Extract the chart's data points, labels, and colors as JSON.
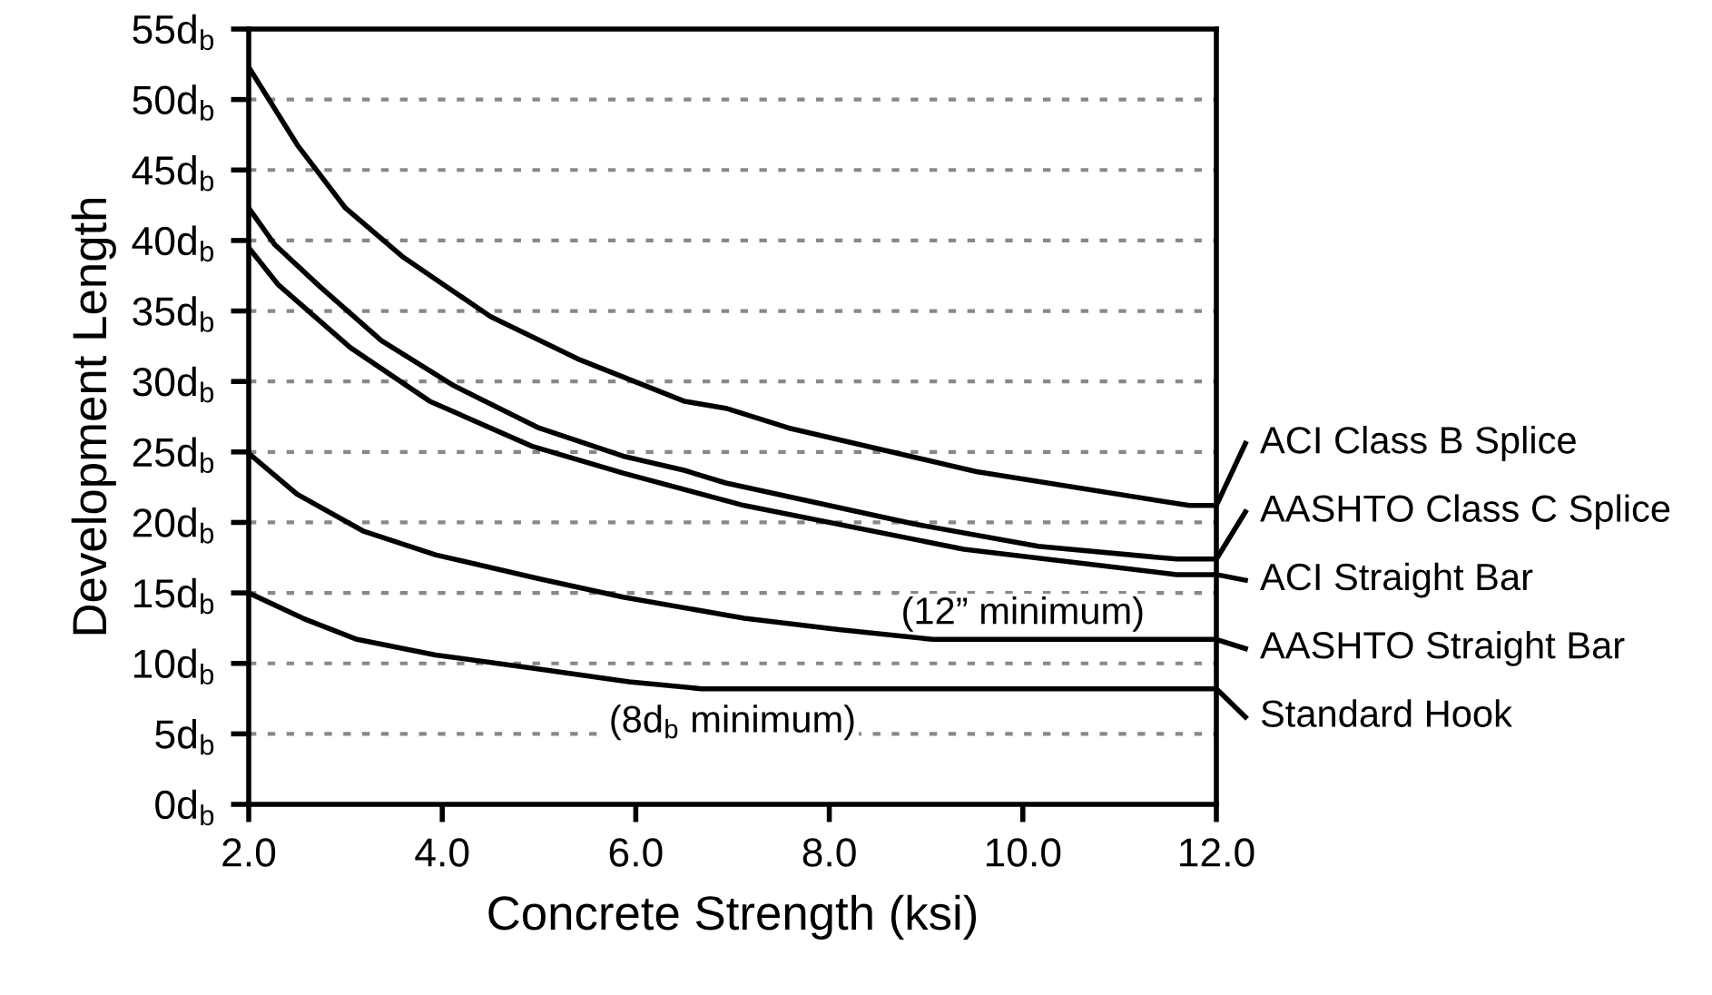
{
  "chart_data": {
    "type": "line",
    "xlabel": "Concrete Strength (ksi)",
    "ylabel": "Development Length",
    "xlim": [
      2.0,
      12.0
    ],
    "xticks": [
      {
        "value": 2,
        "label": "2.0"
      },
      {
        "value": 4,
        "label": "4.0"
      },
      {
        "value": 6,
        "label": "6.0"
      },
      {
        "value": 8,
        "label": "8.0"
      },
      {
        "value": 10,
        "label": "10.0"
      },
      {
        "value": 12,
        "label": "12.0"
      }
    ],
    "ylim": [
      0,
      55
    ],
    "yticks": [
      {
        "value": 0,
        "label": "0d$_{b}$"
      },
      {
        "value": 5,
        "label": "5d$_{b}$"
      },
      {
        "value": 10,
        "label": "10d$_{b}$"
      },
      {
        "value": 15,
        "label": "15d$_{b}$"
      },
      {
        "value": 20,
        "label": "20d$_{b}$"
      },
      {
        "value": 25,
        "label": "25d$_{b}$"
      },
      {
        "value": 30,
        "label": "30d$_{b}$"
      },
      {
        "value": 35,
        "label": "35d$_{b}$"
      },
      {
        "value": 40,
        "label": "40d$_{b}$"
      },
      {
        "value": 45,
        "label": "45d$_{b}$"
      },
      {
        "value": 50,
        "label": "50d$_{b}$"
      },
      {
        "value": 55,
        "label": "55d$_{b}$"
      }
    ],
    "grid": "y",
    "legend": "right",
    "marker": "none",
    "line_style": "solid",
    "series": [
      {
        "name": "ACI Class B Splice",
        "color": "#000000",
        "x": [
          2.0,
          2.5,
          3.0,
          3.6,
          4.5,
          5.4,
          6.5,
          6.93,
          7.58,
          9.52,
          11.72,
          12.0
        ],
        "values": [
          52.3,
          46.8,
          42.3,
          38.8,
          34.6,
          31.6,
          28.6,
          28.1,
          26.7,
          23.6,
          21.2,
          21.2
        ]
      },
      {
        "name": "AASHTO Class C Splice",
        "color": "#000000",
        "x": [
          2.0,
          2.27,
          2.74,
          3.37,
          4.12,
          5.0,
          5.87,
          6.5,
          6.93,
          8.87,
          10.16,
          11.59,
          12.0
        ],
        "values": [
          42.3,
          39.7,
          36.7,
          32.9,
          29.7,
          26.7,
          24.7,
          23.7,
          22.8,
          19.9,
          18.3,
          17.4,
          17.4
        ]
      },
      {
        "name": "ACI Straight Bar",
        "color": "#000000",
        "x": [
          2.0,
          2.3,
          3.05,
          3.87,
          4.93,
          5.87,
          7.12,
          9.39,
          11.59,
          12.0
        ],
        "values": [
          39.5,
          36.9,
          32.4,
          28.6,
          25.4,
          23.5,
          21.2,
          18.1,
          16.3,
          16.3
        ]
      },
      {
        "name": "AASHTO Straight Bar",
        "color": "#000000",
        "x": [
          2.0,
          2.5,
          3.18,
          3.93,
          5.0,
          5.87,
          7.12,
          8.1,
          9.07,
          10.16,
          12.0
        ],
        "values": [
          24.9,
          22.0,
          19.4,
          17.7,
          16.0,
          14.7,
          13.2,
          12.4,
          11.7,
          11.7,
          11.7
        ]
      },
      {
        "name": "Standard Hook",
        "color": "#000000",
        "x": [
          2.0,
          2.56,
          3.12,
          3.93,
          5.0,
          5.93,
          6.68,
          12.0
        ],
        "values": [
          15.0,
          13.2,
          11.7,
          10.6,
          9.6,
          8.7,
          8.2,
          8.2
        ]
      }
    ],
    "annotations": [
      {
        "text": "(12” minimum)",
        "x": 10.0,
        "y": 11.7
      },
      {
        "text": "(8d$_{b}$ minimum)",
        "x": 7.0,
        "y": 8.2
      }
    ]
  }
}
